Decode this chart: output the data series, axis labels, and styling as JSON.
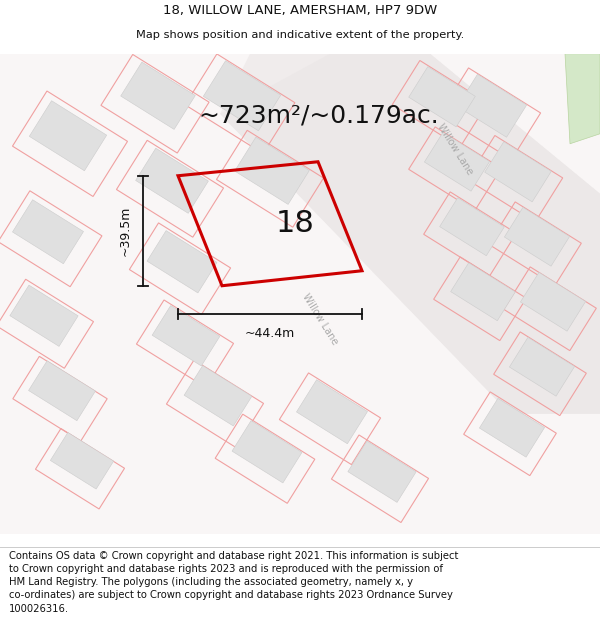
{
  "title_line1": "18, WILLOW LANE, AMERSHAM, HP7 9DW",
  "title_line2": "Map shows position and indicative extent of the property.",
  "area_text": "~723m²/~0.179ac.",
  "property_number": "18",
  "width_label": "~44.4m",
  "height_label": "~39.5m",
  "footer_text": "Contains OS data © Crown copyright and database right 2021. This information is subject to Crown copyright and database rights 2023 and is reproduced with the permission of HM Land Registry. The polygons (including the associated geometry, namely x, y co-ordinates) are subject to Crown copyright and database rights 2023 Ordnance Survey 100026316.",
  "main_polygon_color": "#cc0000",
  "plot_line_color": "#f0a0a0",
  "building_fill": "#e0e0e0",
  "building_edge": "#cccccc",
  "bg_color": "#f8f5f5",
  "map_bg": "#ffffff",
  "road_fill": "#f0eeee",
  "green_fill": "#d4e8c8",
  "text_color": "#111111",
  "dim_color": "#111111",
  "road_label_color": "#aaaaaa",
  "title_fontsize": 9.5,
  "subtitle_fontsize": 8.2,
  "area_fontsize": 18,
  "num_fontsize": 22,
  "dim_fontsize": 9,
  "footer_fontsize": 7.2,
  "road_label_fontsize": 7,
  "willow_label1_rotation": -58,
  "willow_label2_rotation": -58
}
